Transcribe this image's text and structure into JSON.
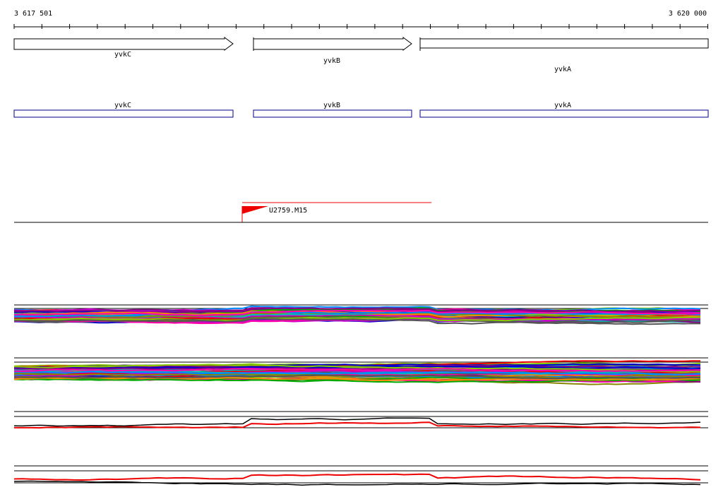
{
  "ruler": {
    "start": "3 617 501",
    "end": "3 620 000"
  },
  "genes": [
    {
      "label": "yvkC"
    },
    {
      "label": "yvkB"
    },
    {
      "label": "yvkA"
    }
  ],
  "transcripts": [
    {
      "label": "yvkC"
    },
    {
      "label": "yvkB"
    },
    {
      "label": "yvkA"
    }
  ],
  "promoter": {
    "label": "U2759.M15"
  }
}
